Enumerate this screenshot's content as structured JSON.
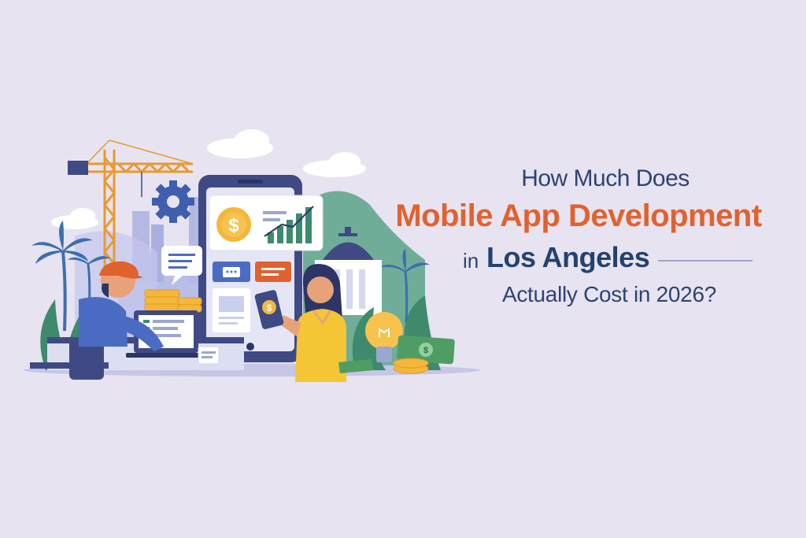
{
  "headline": {
    "line1": "How Much Does",
    "line2": "Mobile App Development",
    "line3_prefix": "in",
    "line3_city": "Los Angeles",
    "line4": "Actually Cost in 2026?"
  },
  "colors": {
    "background": "#e7e3f1",
    "navy": "#2d4373",
    "orange": "#e0622f",
    "crane": "#f0a73a",
    "phone": "#3f4a85",
    "gold": "#f4b73b",
    "money": "#4f9d63",
    "foliage": "#3f8a6d"
  },
  "icons": [
    "crane-icon",
    "gear-icon",
    "cloud-icon",
    "palm-tree-icon",
    "dollar-coin-icon",
    "bar-chart-icon",
    "chat-bubble-icon",
    "lightbulb-icon",
    "cash-bill-icon",
    "laptop-icon"
  ]
}
